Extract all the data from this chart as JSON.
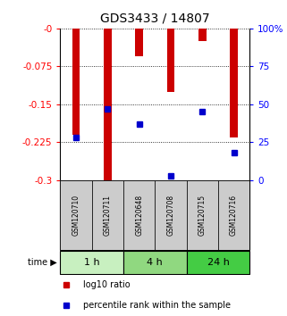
{
  "title": "GDS3433 / 14807",
  "samples": [
    "GSM120710",
    "GSM120711",
    "GSM120648",
    "GSM120708",
    "GSM120715",
    "GSM120716"
  ],
  "log10_ratio": [
    -0.21,
    -0.3,
    -0.055,
    -0.125,
    -0.025,
    -0.215
  ],
  "percentile_rank": [
    28,
    47,
    37,
    3,
    45,
    18
  ],
  "time_groups": [
    {
      "label": "1 h",
      "start": 0,
      "end": 2,
      "color": "#c8f0c0"
    },
    {
      "label": "4 h",
      "start": 2,
      "end": 4,
      "color": "#90d880"
    },
    {
      "label": "24 h",
      "start": 4,
      "end": 6,
      "color": "#44cc44"
    }
  ],
  "bar_color": "#cc0000",
  "marker_color": "#0000cc",
  "ylim_left": [
    -0.3,
    0.0
  ],
  "ylim_right": [
    0,
    100
  ],
  "yticks_left": [
    0.0,
    -0.075,
    -0.15,
    -0.225,
    -0.3
  ],
  "yticks_right": [
    0,
    25,
    50,
    75,
    100
  ],
  "ytick_labels_left": [
    "-0",
    "-0.075",
    "-0.15",
    "-0.225",
    "-0.3"
  ],
  "ytick_labels_right": [
    "0",
    "25",
    "50",
    "75",
    "100%"
  ],
  "bar_width": 0.25,
  "sample_box_color": "#cccccc",
  "background_color": "#ffffff",
  "legend_items": [
    {
      "color": "#cc0000",
      "label": "log10 ratio"
    },
    {
      "color": "#0000cc",
      "label": "percentile rank within the sample"
    }
  ]
}
